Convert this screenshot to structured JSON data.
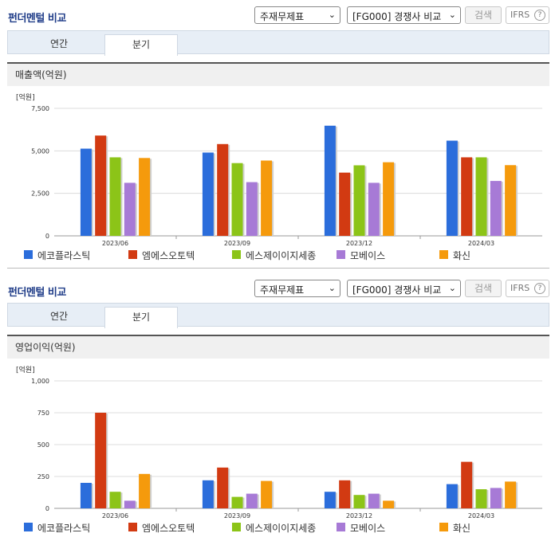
{
  "header": {
    "title": "펀더멘털 비교",
    "select_type": "주재무제표",
    "select_compare": "[FG000] 경쟁사 비교",
    "search_label": "검색",
    "ifrs_label": "IFRS",
    "help_glyph": "?"
  },
  "tabs": [
    {
      "label": "연간",
      "active": false
    },
    {
      "label": "분기",
      "active": true
    }
  ],
  "unit_label": "[억원]",
  "legend": [
    {
      "name": "에코플라스틱",
      "color": "#2b6ddb"
    },
    {
      "name": "엠에스오토텍",
      "color": "#d23a12"
    },
    {
      "name": "에스제이이지세종",
      "color": "#8cc418"
    },
    {
      "name": "모베이스",
      "color": "#a77ad6"
    },
    {
      "name": "화신",
      "color": "#f59a0c"
    }
  ],
  "chart_data": [
    {
      "type": "bar",
      "title": "매출액(억원)",
      "ylabel": "[억원]",
      "categories": [
        "2023/06",
        "2023/09",
        "2023/12",
        "2024/03"
      ],
      "ylim": [
        0,
        7500
      ],
      "yticks": [
        0,
        2500,
        5000,
        7500
      ],
      "ytick_labels": [
        "0",
        "2,500",
        "5,000",
        "7,500"
      ],
      "series": [
        {
          "name": "에코플라스틱",
          "values": [
            5130,
            4900,
            6480,
            5600
          ]
        },
        {
          "name": "엠에스오토텍",
          "values": [
            5900,
            5400,
            3720,
            4620
          ]
        },
        {
          "name": "에스제이이지세종",
          "values": [
            4620,
            4280,
            4150,
            4620
          ]
        },
        {
          "name": "모베이스",
          "values": [
            3120,
            3160,
            3120,
            3230
          ]
        },
        {
          "name": "화신",
          "values": [
            4580,
            4430,
            4330,
            4160
          ]
        }
      ]
    },
    {
      "type": "bar",
      "title": "영업이익(억원)",
      "ylabel": "[억원]",
      "categories": [
        "2023/06",
        "2023/09",
        "2023/12",
        "2024/03"
      ],
      "ylim": [
        0,
        1000
      ],
      "yticks": [
        0,
        250,
        500,
        750,
        1000
      ],
      "ytick_labels": [
        "0",
        "250",
        "500",
        "750",
        "1,000"
      ],
      "series": [
        {
          "name": "에코플라스틱",
          "values": [
            200,
            220,
            130,
            190
          ]
        },
        {
          "name": "엠에스오토텍",
          "values": [
            750,
            320,
            220,
            365
          ]
        },
        {
          "name": "에스제이이지세종",
          "values": [
            130,
            90,
            105,
            150
          ]
        },
        {
          "name": "모베이스",
          "values": [
            60,
            115,
            115,
            160
          ]
        },
        {
          "name": "화신",
          "values": [
            270,
            215,
            60,
            210
          ]
        }
      ]
    }
  ]
}
